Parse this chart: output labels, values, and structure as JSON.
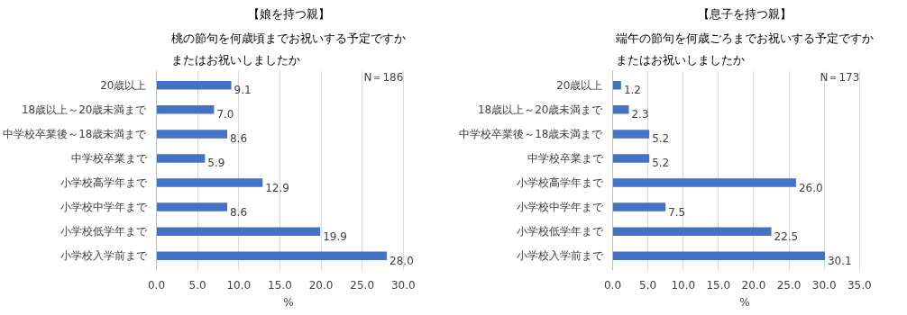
{
  "chart_data": [
    {
      "type": "bar",
      "orientation": "horizontal",
      "title": "【娘を持つ親】",
      "subtitle": "桃の節句を何歳頃までお祝いする予定ですかまたはお祝いしましたか",
      "xlabel": "%",
      "annotations": [
        "N＝186"
      ],
      "categories": [
        "20歳以上",
        "18歳以上～20歳未満まで",
        "中学校卒業後～18歳未満まで",
        "中学校卒業まで",
        "小学校高学年まで",
        "小学校中学年まで",
        "小学校低学年まで",
        "小学校入学前まで"
      ],
      "values": [
        9.1,
        7.0,
        8.6,
        5.9,
        12.9,
        8.6,
        19.9,
        28.0
      ],
      "value_labels": [
        "9.1",
        "7.0",
        "8.6",
        "5.9",
        "12.9",
        "8.6",
        "19.9",
        "28.0"
      ],
      "color": "#4472c4",
      "xlim": [
        0,
        30
      ],
      "xticks": [
        {
          "value": 0,
          "label": "0.0"
        },
        {
          "value": 5,
          "label": "5.0"
        },
        {
          "value": 10,
          "label": "10.0"
        },
        {
          "value": 15,
          "label": "15.0"
        },
        {
          "value": 20,
          "label": "20.0"
        },
        {
          "value": 25,
          "label": "25.0"
        },
        {
          "value": 30,
          "label": "30.0"
        }
      ],
      "grid": "x"
    },
    {
      "type": "bar",
      "orientation": "horizontal",
      "title": "【息子を持つ親】",
      "subtitle": "端午の節句を何歳ごろまでお祝いする予定ですかまたはお祝いしましたか",
      "xlabel": "%",
      "annotations": [
        "N＝173"
      ],
      "categories": [
        "20歳以上",
        "18歳以上～20歳未満まで",
        "中学校卒業後～18歳未満まで",
        "中学校卒業まで",
        "小学校高学年まで",
        "小学校中学年まで",
        "小学校低学年まで",
        "小学校入学前まで"
      ],
      "values": [
        1.2,
        2.3,
        5.2,
        5.2,
        26.0,
        7.5,
        22.5,
        30.1
      ],
      "value_labels": [
        "1.2",
        "2.3",
        "5.2",
        "5.2",
        "26.0",
        "7.5",
        "22.5",
        "30.1"
      ],
      "color": "#4472c4",
      "xlim": [
        0,
        35
      ],
      "xticks": [
        {
          "value": 0,
          "label": "0.0"
        },
        {
          "value": 5,
          "label": "5.0"
        },
        {
          "value": 10,
          "label": "10.0"
        },
        {
          "value": 15,
          "label": "15.0"
        },
        {
          "value": 20,
          "label": "20.0"
        },
        {
          "value": 25,
          "label": "25.0"
        },
        {
          "value": 30,
          "label": "30.0"
        },
        {
          "value": 35,
          "label": "35.0"
        }
      ],
      "grid": "x"
    }
  ]
}
